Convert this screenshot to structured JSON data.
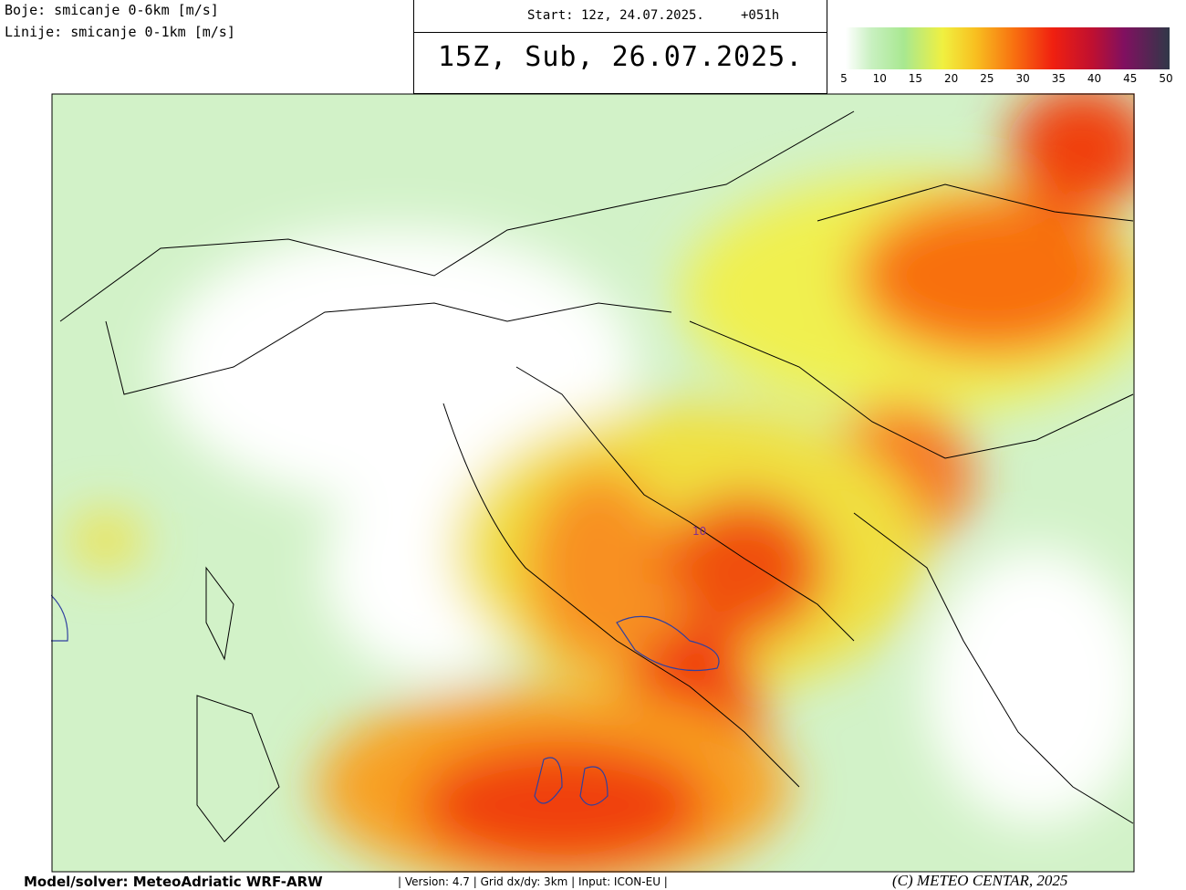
{
  "header": {
    "line1": "Boje: smicanje 0-6km [m/s]",
    "line2": "Linije: smicanje 0-1km [m/s]",
    "start": "Start: 12z, 24.07.2025.",
    "lead": "+051h",
    "valid": "15Z, Sub, 26.07.2025."
  },
  "colorbar": {
    "ticks": [
      5,
      10,
      15,
      20,
      25,
      30,
      35,
      40,
      45,
      50
    ]
  },
  "map": {
    "contour_label": "10"
  },
  "footer": {
    "model": "Model/solver: MeteoAdriatic WRF-ARW",
    "info": "| Version: 4.7 | Grid dx/dy: 3km | Input: ICON-EU |",
    "copyright": "(C) METEO CENTAR, 2025"
  }
}
